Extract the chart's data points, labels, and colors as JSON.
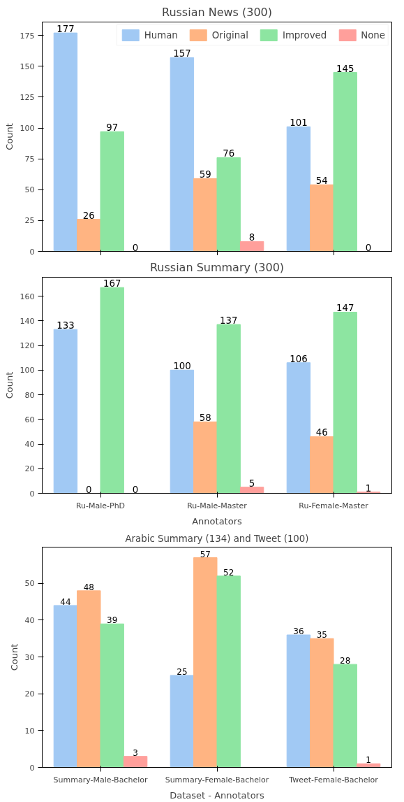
{
  "chart_data": [
    {
      "type": "bar",
      "title": "Russian News (300)",
      "ylabel": "Count",
      "categories": [
        null,
        null,
        null
      ],
      "series": [
        {
          "name": "Human",
          "color": "#a1c9f4",
          "values": [
            177,
            157,
            101
          ]
        },
        {
          "name": "Original",
          "color": "#ffb482",
          "values": [
            26,
            59,
            54
          ]
        },
        {
          "name": "Improved",
          "color": "#8de5a1",
          "values": [
            97,
            76,
            145
          ]
        },
        {
          "name": "None",
          "color": "#ff9f9b",
          "values": [
            0,
            8,
            0
          ]
        }
      ],
      "ylim": [
        0,
        185.85
      ],
      "yticks": [
        0,
        25,
        50,
        75,
        100,
        125,
        150,
        175
      ],
      "data_labels": true,
      "legend": "top right"
    },
    {
      "type": "bar",
      "title": "Russian Summary (300)",
      "xlabel": "Annotators",
      "ylabel": "Count",
      "categories": [
        "Ru-Male-PhD",
        "Ru-Male-Master",
        "Ru-Female-Master"
      ],
      "series": [
        {
          "color": "#a1c9f4",
          "values": [
            133,
            100,
            106
          ]
        },
        {
          "color": "#ffb482",
          "values": [
            0,
            58,
            46
          ]
        },
        {
          "color": "#8de5a1",
          "values": [
            167,
            137,
            147
          ]
        },
        {
          "color": "#ff9f9b",
          "values": [
            0,
            5,
            1
          ]
        }
      ],
      "ylim": [
        0,
        175.35
      ],
      "yticks": [
        0,
        20,
        40,
        60,
        80,
        100,
        120,
        140,
        160
      ],
      "data_labels": true
    },
    {
      "type": "bar",
      "title": "Arabic Summary (134) and Tweet (100)",
      "xlabel": "Dataset - Annotators",
      "ylabel": "Count",
      "categories": [
        "Summary-Male-Bachelor",
        "Summary-Female-Bachelor",
        "Tweet-Female-Bachelor"
      ],
      "series": [
        {
          "color": "#a1c9f4",
          "values": [
            44,
            25,
            36
          ]
        },
        {
          "color": "#ffb482",
          "values": [
            48,
            57,
            35
          ]
        },
        {
          "color": "#8de5a1",
          "values": [
            39,
            52,
            28
          ]
        },
        {
          "color": "#ff9f9b",
          "values": [
            3,
            null,
            1
          ]
        }
      ],
      "ylim": [
        0,
        59.85
      ],
      "yticks": [
        0,
        10,
        20,
        30,
        40,
        50
      ],
      "data_labels": true
    }
  ]
}
